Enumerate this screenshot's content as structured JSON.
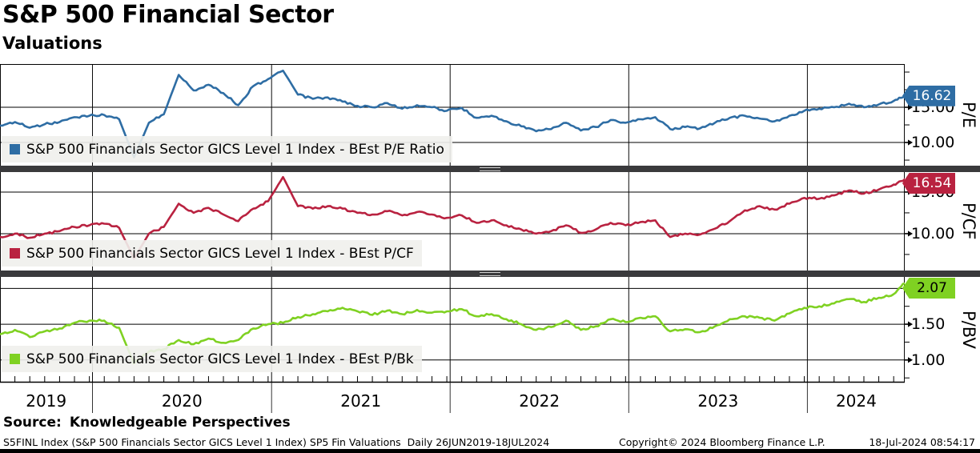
{
  "header": {
    "title": "S&P 500 Financial Sector",
    "subtitle": "Valuations"
  },
  "source_line": {
    "label": "Source:",
    "text": "Knowledgeable Perspectives"
  },
  "footer": {
    "left": "S5FINL Index (S&P 500 Financials Sector GICS Level 1 Index) SP5 Fin Valuations  Daily 26JUN2019-18JUL2024",
    "center": "Copyright© 2024 Bloomberg Finance L.P.",
    "right": "18-Jul-2024 08:54:17"
  },
  "x_axis": {
    "year_labels": [
      "2019",
      "2020",
      "2021",
      "2022",
      "2023",
      "2024"
    ],
    "range_start": "26JUN2019",
    "range_end": "18JUL2024",
    "frequency": "Daily"
  },
  "chart_data": [
    {
      "type": "line",
      "legend": "S&P 500 Financials Sector GICS Level 1 Index - BEst P/E Ratio",
      "axis_title": "P/E",
      "color": "#2e6da4",
      "last_value_label": "16.62",
      "flag_bg": "#2e6da4",
      "flag_text_color": "#ffffff",
      "y_axis": {
        "tick_labels": [
          "15.00",
          "10.00"
        ],
        "tick_values": [
          15,
          10
        ],
        "minor_tick_values": [
          20,
          17.5,
          12.5,
          7.5
        ],
        "gridline_values": [
          15,
          10
        ],
        "ylim": [
          6.71,
          21.14
        ]
      },
      "x": [
        "2019-06",
        "2019-07",
        "2019-08",
        "2019-09",
        "2019-10",
        "2019-11",
        "2019-12",
        "2020-01",
        "2020-02",
        "2020-03",
        "2020-04",
        "2020-05",
        "2020-06",
        "2020-07",
        "2020-08",
        "2020-09",
        "2020-10",
        "2020-11",
        "2020-12",
        "2021-01",
        "2021-02",
        "2021-03",
        "2021-04",
        "2021-05",
        "2021-06",
        "2021-07",
        "2021-08",
        "2021-09",
        "2021-10",
        "2021-11",
        "2021-12",
        "2022-01",
        "2022-02",
        "2022-03",
        "2022-04",
        "2022-05",
        "2022-06",
        "2022-07",
        "2022-08",
        "2022-09",
        "2022-10",
        "2022-11",
        "2022-12",
        "2023-01",
        "2023-02",
        "2023-03",
        "2023-04",
        "2023-05",
        "2023-06",
        "2023-07",
        "2023-08",
        "2023-09",
        "2023-10",
        "2023-11",
        "2023-12",
        "2024-01",
        "2024-02",
        "2024-03",
        "2024-04",
        "2024-05",
        "2024-06",
        "2024-07"
      ],
      "values": [
        12.4,
        12.9,
        12.1,
        12.6,
        12.9,
        13.6,
        13.8,
        13.9,
        13.3,
        7.9,
        12.8,
        14.0,
        19.6,
        17.4,
        18.2,
        17.0,
        15.3,
        18.0,
        19.0,
        20.2,
        16.8,
        16.2,
        16.4,
        15.8,
        15.2,
        15.0,
        15.6,
        14.8,
        15.3,
        15.0,
        14.5,
        14.9,
        13.5,
        13.8,
        13.0,
        12.3,
        11.6,
        11.9,
        12.8,
        11.7,
        12.2,
        13.2,
        12.8,
        13.3,
        13.6,
        11.9,
        12.2,
        12.0,
        12.8,
        13.5,
        13.8,
        13.4,
        13.0,
        13.8,
        14.5,
        14.8,
        15.0,
        15.5,
        15.0,
        15.4,
        15.9,
        16.62
      ]
    },
    {
      "type": "line",
      "legend": "S&P 500 Financials Sector GICS Level 1 Index - BEst P/CF",
      "axis_title": "P/CF",
      "color": "#b92240",
      "last_value_label": "16.54",
      "flag_bg": "#b92240",
      "flag_text_color": "#ffffff",
      "y_axis": {
        "tick_labels": [
          "15.00",
          "10.00"
        ],
        "tick_values": [
          15,
          10
        ],
        "minor_tick_values": [
          12.5,
          7.5
        ],
        "gridline_values": [
          15,
          10
        ],
        "ylim": [
          5.57,
          17.4
        ]
      },
      "x": [
        "2019-06",
        "2019-07",
        "2019-08",
        "2019-09",
        "2019-10",
        "2019-11",
        "2019-12",
        "2020-01",
        "2020-02",
        "2020-03",
        "2020-04",
        "2020-05",
        "2020-06",
        "2020-07",
        "2020-08",
        "2020-09",
        "2020-10",
        "2020-11",
        "2020-12",
        "2021-01",
        "2021-02",
        "2021-03",
        "2021-04",
        "2021-05",
        "2021-06",
        "2021-07",
        "2021-08",
        "2021-09",
        "2021-10",
        "2021-11",
        "2021-12",
        "2022-01",
        "2022-02",
        "2022-03",
        "2022-04",
        "2022-05",
        "2022-06",
        "2022-07",
        "2022-08",
        "2022-09",
        "2022-10",
        "2022-11",
        "2022-12",
        "2023-01",
        "2023-02",
        "2023-03",
        "2023-04",
        "2023-05",
        "2023-06",
        "2023-07",
        "2023-08",
        "2023-09",
        "2023-10",
        "2023-11",
        "2023-12",
        "2024-01",
        "2024-02",
        "2024-03",
        "2024-04",
        "2024-05",
        "2024-06",
        "2024-07"
      ],
      "values": [
        9.6,
        10.0,
        9.5,
        10.0,
        10.3,
        10.8,
        11.0,
        11.2,
        10.7,
        7.0,
        10.0,
        10.8,
        13.6,
        12.5,
        13.1,
        12.3,
        11.5,
        13.0,
        13.9,
        16.8,
        13.3,
        13.0,
        13.3,
        13.0,
        12.5,
        12.3,
        12.7,
        12.2,
        12.6,
        12.3,
        11.9,
        12.2,
        11.3,
        11.6,
        11.0,
        10.5,
        10.0,
        10.3,
        11.0,
        10.1,
        10.5,
        11.3,
        11.0,
        11.4,
        11.6,
        9.6,
        10.0,
        9.9,
        10.6,
        11.5,
        12.8,
        13.3,
        12.9,
        13.6,
        14.3,
        14.2,
        14.6,
        15.2,
        14.8,
        15.3,
        15.9,
        16.54
      ]
    },
    {
      "type": "line",
      "legend": "S&P 500 Financials Sector GICS Level 1 Index - BEst P/Bk",
      "axis_title": "P/BV",
      "color": "#7fd122",
      "last_value_label": "2.07",
      "flag_bg": "#7fd122",
      "flag_text_color": "#000000",
      "y_axis": {
        "tick_labels": [
          "1.50",
          "1.00"
        ],
        "tick_values": [
          1.5,
          1.0
        ],
        "minor_tick_values": [
          1.75,
          1.25,
          0.75
        ],
        "unlabeled_major_values": [
          2.0
        ],
        "gridline_values": [
          2.0,
          1.5,
          1.0
        ],
        "ylim": [
          0.685,
          2.16
        ]
      },
      "x": [
        "2019-06",
        "2019-07",
        "2019-08",
        "2019-09",
        "2019-10",
        "2019-11",
        "2019-12",
        "2020-01",
        "2020-02",
        "2020-03",
        "2020-04",
        "2020-05",
        "2020-06",
        "2020-07",
        "2020-08",
        "2020-09",
        "2020-10",
        "2020-11",
        "2020-12",
        "2021-01",
        "2021-02",
        "2021-03",
        "2021-04",
        "2021-05",
        "2021-06",
        "2021-07",
        "2021-08",
        "2021-09",
        "2021-10",
        "2021-11",
        "2021-12",
        "2022-01",
        "2022-02",
        "2022-03",
        "2022-04",
        "2022-05",
        "2022-06",
        "2022-07",
        "2022-08",
        "2022-09",
        "2022-10",
        "2022-11",
        "2022-12",
        "2023-01",
        "2023-02",
        "2023-03",
        "2023-04",
        "2023-05",
        "2023-06",
        "2023-07",
        "2023-08",
        "2023-09",
        "2023-10",
        "2023-11",
        "2023-12",
        "2024-01",
        "2024-02",
        "2024-03",
        "2024-04",
        "2024-05",
        "2024-06",
        "2024-07"
      ],
      "values": [
        1.36,
        1.42,
        1.32,
        1.4,
        1.44,
        1.52,
        1.55,
        1.55,
        1.45,
        0.95,
        1.12,
        1.15,
        1.28,
        1.22,
        1.3,
        1.24,
        1.28,
        1.44,
        1.5,
        1.52,
        1.6,
        1.64,
        1.68,
        1.73,
        1.68,
        1.63,
        1.69,
        1.64,
        1.7,
        1.66,
        1.68,
        1.71,
        1.61,
        1.64,
        1.57,
        1.5,
        1.42,
        1.46,
        1.55,
        1.42,
        1.47,
        1.57,
        1.53,
        1.59,
        1.61,
        1.4,
        1.43,
        1.39,
        1.47,
        1.57,
        1.61,
        1.59,
        1.55,
        1.65,
        1.73,
        1.75,
        1.79,
        1.85,
        1.81,
        1.87,
        1.92,
        2.07
      ]
    }
  ]
}
